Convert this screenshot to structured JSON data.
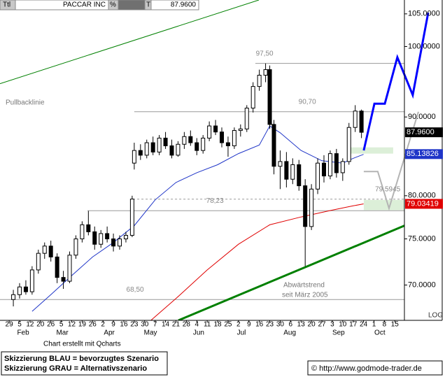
{
  "header": {
    "ttl": "Ttl",
    "name": "PACCAR INC",
    "pct": "%",
    "t": "T",
    "last": "87.9600"
  },
  "chart_data": {
    "type": "candlestick",
    "log_scale": true,
    "xlim": [
      -4.4,
      189.6
    ],
    "ylim": [
      66.4,
      107.2
    ],
    "yticks": [
      {
        "value": 105,
        "label": "105.0000"
      },
      {
        "value": 100,
        "label": "100.0000"
      },
      {
        "value": 90,
        "label": "90.0000"
      },
      {
        "value": 80,
        "label": "80.0000"
      },
      {
        "value": 75,
        "label": "75.0000"
      },
      {
        "value": 70,
        "label": "70.0000"
      }
    ],
    "y_scale_label": "LOG",
    "xticks": [
      {
        "value": 0,
        "label": "29"
      },
      {
        "value": 5,
        "label": "5"
      },
      {
        "value": 10,
        "label": "12"
      },
      {
        "value": 15,
        "label": "20"
      },
      {
        "value": 20,
        "label": "26"
      },
      {
        "value": 25,
        "label": "5"
      },
      {
        "value": 30,
        "label": "12"
      },
      {
        "value": 35,
        "label": "19"
      },
      {
        "value": 40,
        "label": "26"
      },
      {
        "value": 45,
        "label": "2"
      },
      {
        "value": 50,
        "label": "9"
      },
      {
        "value": 55,
        "label": "16"
      },
      {
        "value": 60,
        "label": "23"
      },
      {
        "value": 65,
        "label": "30"
      },
      {
        "value": 70,
        "label": "7"
      },
      {
        "value": 75,
        "label": "14"
      },
      {
        "value": 80,
        "label": "21"
      },
      {
        "value": 85,
        "label": "28"
      },
      {
        "value": 90,
        "label": "4"
      },
      {
        "value": 95,
        "label": "11"
      },
      {
        "value": 100,
        "label": "18"
      },
      {
        "value": 105,
        "label": "25"
      },
      {
        "value": 110,
        "label": "2"
      },
      {
        "value": 115,
        "label": "9"
      },
      {
        "value": 120,
        "label": "16"
      },
      {
        "value": 125,
        "label": "23"
      },
      {
        "value": 130,
        "label": "30"
      },
      {
        "value": 135,
        "label": "6"
      },
      {
        "value": 140,
        "label": "13"
      },
      {
        "value": 145,
        "label": "20"
      },
      {
        "value": 150,
        "label": "27"
      },
      {
        "value": 155,
        "label": "3"
      },
      {
        "value": 160,
        "label": "10"
      },
      {
        "value": 165,
        "label": "17"
      },
      {
        "value": 170,
        "label": "24"
      },
      {
        "value": 175,
        "label": "1"
      },
      {
        "value": 180,
        "label": "8"
      },
      {
        "value": 185,
        "label": "15"
      }
    ],
    "month_ticks": [
      {
        "value": 6.7,
        "label": "Feb"
      },
      {
        "value": 25.5,
        "label": "Mar"
      },
      {
        "value": 48,
        "label": "Apr"
      },
      {
        "value": 67.8,
        "label": "May"
      },
      {
        "value": 90.9,
        "label": "Jun"
      },
      {
        "value": 111.4,
        "label": "Jul"
      },
      {
        "value": 134.6,
        "label": "Aug"
      },
      {
        "value": 158,
        "label": "Sep"
      },
      {
        "value": 177.8,
        "label": "Oct"
      }
    ],
    "candles": {
      "x": [
        2,
        5,
        8,
        11,
        14,
        17,
        20,
        23,
        26,
        29,
        32,
        35,
        38,
        41,
        44,
        47,
        50,
        53,
        56,
        59,
        60,
        63,
        66,
        69,
        72,
        75,
        78,
        81,
        84,
        87,
        90,
        93,
        96,
        99,
        102,
        105,
        108,
        111,
        114,
        117,
        120,
        123,
        125,
        127,
        130,
        133,
        136,
        139,
        142,
        145,
        148,
        151,
        154,
        157,
        160,
        163,
        166,
        169
      ],
      "open": [
        68.5,
        69.0,
        69.8,
        69.3,
        71.6,
        73.4,
        74.2,
        73.0,
        70.8,
        70.4,
        73.2,
        75.0,
        76.6,
        75.8,
        74.4,
        75.6,
        75.0,
        74.2,
        75.0,
        75.4,
        84.0,
        85.6,
        85.0,
        86.6,
        85.4,
        87.2,
        86.2,
        85.0,
        86.4,
        87.4,
        86.6,
        85.6,
        87.2,
        88.8,
        88.0,
        86.6,
        86.2,
        88.2,
        88.4,
        91.2,
        94.2,
        95.8,
        96.6,
        89.0,
        83.6,
        84.2,
        82.0,
        83.8,
        81.2,
        76.4,
        80.8,
        84.0,
        82.4,
        85.2,
        82.8,
        84.2,
        88.6,
        90.8
      ],
      "high": [
        69.5,
        70.2,
        70.5,
        72.0,
        73.8,
        74.6,
        74.8,
        73.4,
        71.5,
        73.6,
        75.4,
        77.0,
        78.2,
        76.4,
        76.0,
        76.4,
        75.6,
        75.4,
        75.8,
        80.0,
        86.6,
        86.4,
        87.0,
        87.4,
        87.6,
        88.0,
        87.0,
        86.8,
        88.0,
        88.2,
        87.2,
        87.6,
        89.4,
        89.6,
        88.6,
        87.4,
        88.6,
        89.0,
        91.6,
        94.8,
        96.6,
        97.5,
        97.2,
        89.6,
        85.6,
        85.4,
        84.6,
        84.4,
        82.0,
        81.4,
        84.6,
        85.0,
        85.6,
        85.8,
        84.6,
        89.2,
        91.6,
        91.0
      ],
      "low": [
        67.8,
        68.6,
        69.0,
        69.0,
        71.2,
        72.8,
        72.5,
        70.2,
        69.6,
        70.2,
        72.8,
        74.6,
        75.4,
        73.8,
        74.0,
        74.6,
        73.6,
        73.8,
        74.6,
        75.2,
        83.2,
        84.4,
        84.6,
        85.0,
        85.0,
        85.8,
        84.6,
        84.8,
        85.8,
        86.2,
        85.0,
        85.2,
        86.8,
        87.6,
        86.0,
        84.8,
        85.8,
        87.4,
        88.0,
        90.6,
        93.6,
        94.8,
        88.4,
        82.6,
        80.8,
        81.0,
        81.4,
        80.6,
        72.0,
        76.0,
        80.2,
        81.6,
        82.0,
        82.2,
        81.8,
        83.8,
        88.0,
        87.2
      ],
      "close": [
        69.0,
        69.8,
        69.3,
        71.6,
        73.4,
        74.2,
        73.0,
        70.8,
        70.4,
        73.2,
        75.0,
        76.6,
        75.8,
        74.4,
        75.6,
        75.0,
        74.2,
        75.0,
        75.4,
        79.6,
        85.6,
        85.0,
        86.6,
        85.4,
        87.2,
        86.2,
        85.0,
        86.4,
        87.4,
        86.6,
        85.6,
        87.2,
        88.8,
        88.0,
        86.6,
        86.2,
        88.2,
        88.4,
        91.2,
        94.2,
        95.8,
        96.6,
        89.0,
        83.6,
        84.2,
        82.0,
        83.8,
        81.2,
        76.4,
        80.8,
        84.0,
        82.4,
        85.2,
        82.8,
        84.2,
        88.6,
        90.8,
        87.96
      ]
    },
    "series": [
      {
        "color": "#1f35c8",
        "width": 1,
        "x": [
          11,
          20,
          30,
          40,
          50,
          60,
          70,
          80,
          90,
          100,
          110,
          120,
          125,
          130,
          140,
          150,
          160,
          165,
          170
        ],
        "values": [
          67.3,
          69.0,
          71.0,
          73.0,
          74.6,
          76.5,
          79.5,
          81.6,
          82.8,
          83.8,
          85.2,
          86.3,
          88.8,
          87.9,
          85.6,
          84.3,
          84.0,
          84.6,
          85.1
        ]
      },
      {
        "color": "#e00000",
        "width": 1,
        "x": [
          68,
          80,
          95,
          110,
          125,
          140,
          155,
          165,
          170
        ],
        "values": [
          66.4,
          68.6,
          71.6,
          74.4,
          76.6,
          77.5,
          78.3,
          78.8,
          79.03
        ]
      }
    ],
    "trendlines": [
      {
        "color": "#008000",
        "width": 1,
        "x": [
          -4.4,
          119.8
        ],
        "values": [
          94.6,
          107.2
        ]
      },
      {
        "color": "#008000",
        "width": 3,
        "x": [
          81.2,
          189.6
        ],
        "values": [
          66.4,
          76.5
        ]
      },
      {
        "color": "#0000ff",
        "width": 3,
        "x": [
          170.1,
          175.2,
          180.2,
          186.2,
          193.6,
          201
        ],
        "values": [
          85.6,
          91.8,
          91.8,
          98.4,
          93.0,
          105.2
        ]
      },
      {
        "color": "#b4b4b4",
        "width": 2,
        "x": [
          170.1,
          176.8,
          182.2,
          196.3
        ],
        "values": [
          82.95,
          82.95,
          78.5,
          90.7
        ]
      }
    ],
    "levels": [
      {
        "value": 97.5,
        "label": "97,50",
        "x_start": 118.1,
        "label_x": 122.5,
        "dashed": false
      },
      {
        "value": 90.7,
        "label": "90,70",
        "x_start": 60,
        "label_x": 143,
        "dashed": false
      },
      {
        "value": 79.5945,
        "label": "79.5945",
        "x_start": 59.4,
        "label_x": 181.6,
        "dashed": true
      },
      {
        "value": 78.23,
        "label": "78,23",
        "x_start": 37.6,
        "label_x": 98.7,
        "dashed": false
      },
      {
        "value": 68.5,
        "label": "68,50",
        "x_start": -4.4,
        "label_x": 60.4,
        "dashed": false
      }
    ],
    "zones": [
      {
        "x_start": 163.4,
        "x_end": 184.2,
        "low": 85.2,
        "high": 86.0,
        "color": "#dcefd8"
      },
      {
        "x_start": 170.1,
        "x_end": 189.6,
        "low": 78.3,
        "high": 79.5,
        "color": "#dcefd8"
      }
    ],
    "price_tags": [
      {
        "value": 87.96,
        "label": "87.9600",
        "color": "#000000"
      },
      {
        "value": 85.13826,
        "label": "85.13826",
        "color": "#1f35c8"
      },
      {
        "value": 79.03419,
        "label": "79.03419",
        "color": "#e00000"
      }
    ],
    "annotations": [
      "Pullbacklinie",
      "Abwärtstrend",
      "seit März 2005"
    ]
  },
  "footer": {
    "credit": "Chart erstellt mit Qcharts",
    "legend_blue": "Skizzierung BLAU = bevorzugtes Szenario",
    "legend_gray": "Skizzierung GRAU = Alternativszenario",
    "copyright": "© http://www.godmode-trader.de"
  }
}
